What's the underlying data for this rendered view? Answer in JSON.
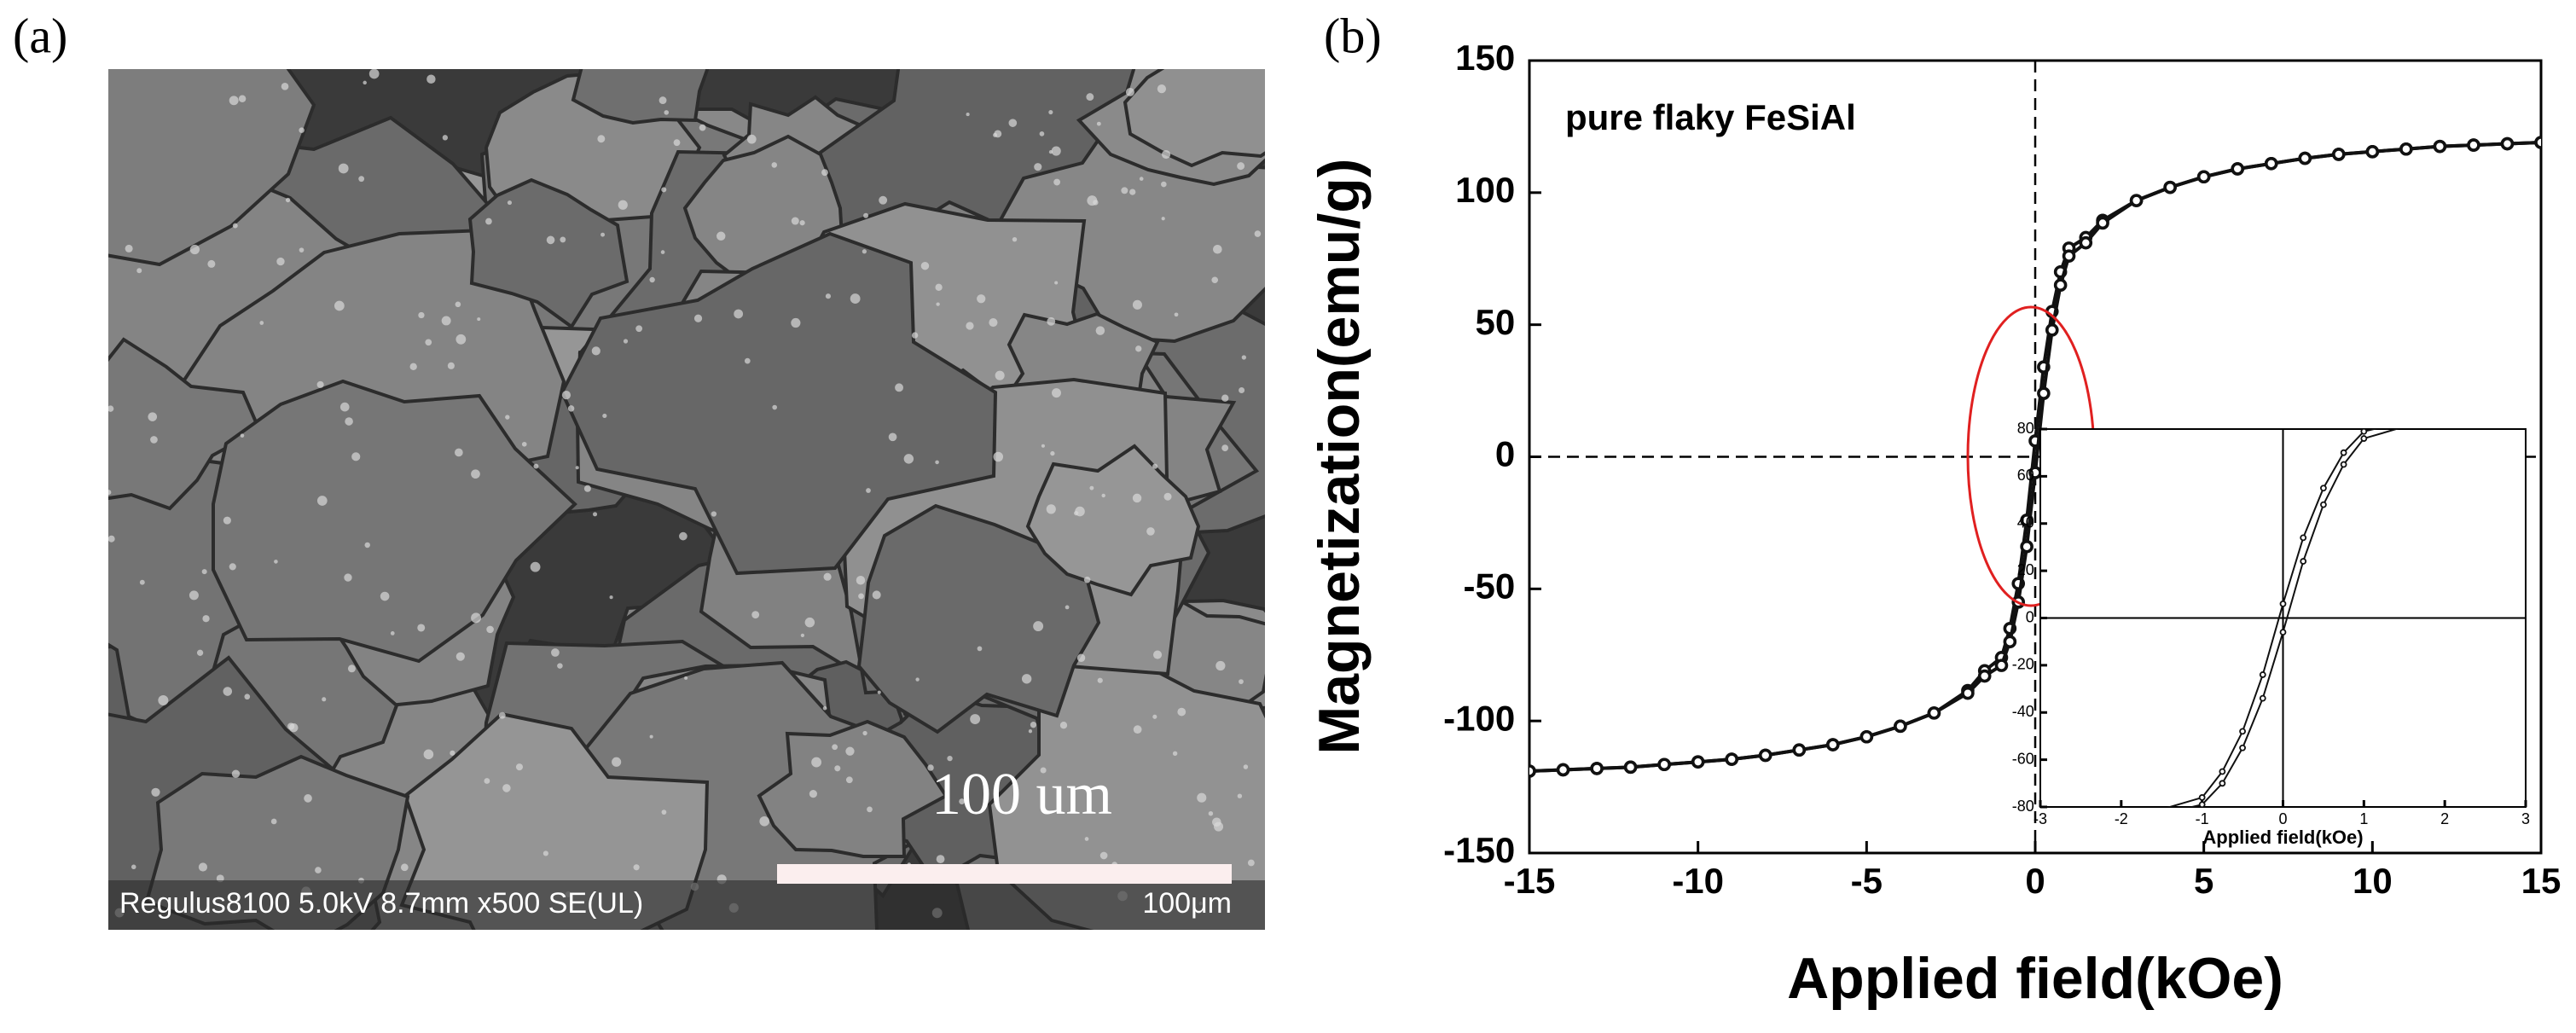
{
  "panel_a": {
    "label": "(a)",
    "scale_text": "100 um",
    "info_bar": "Regulus8100 5.0kV 8.7mm x500 SE(UL)",
    "scale_bar_label": "100μm"
  },
  "chart_data": [
    {
      "type": "line",
      "label": "(b)",
      "annotation": "pure flaky FeSiAl",
      "xlabel": "Applied field(kOe)",
      "ylabel": "Magnetization(emu/g)",
      "xlim": [
        -15,
        15
      ],
      "xticks": [
        -15,
        -10,
        -5,
        0,
        5,
        10,
        15
      ],
      "ylim": [
        -150,
        150
      ],
      "yticks": [
        -150,
        -100,
        -50,
        0,
        50,
        100,
        150
      ],
      "zero_lines": true,
      "x": [
        -15,
        -14,
        -13,
        -12,
        -11,
        -10,
        -9,
        -8,
        -7,
        -6,
        -5,
        -4,
        -3,
        -2,
        -1.5,
        -1,
        -0.75,
        -0.5,
        -0.25,
        0,
        0.25,
        0.5,
        0.75,
        1,
        1.5,
        2,
        3,
        4,
        5,
        6,
        7,
        8,
        9,
        10,
        11,
        12,
        13,
        14,
        15
      ],
      "series": [
        {
          "color": "#111111",
          "values": [
            -119,
            -118.5,
            -118,
            -117.5,
            -116.5,
            -115.5,
            -114.5,
            -113,
            -111,
            -109,
            -106,
            -102,
            -97,
            -88.5,
            -81,
            -76,
            -65,
            -48,
            -24,
            6,
            34,
            55,
            70,
            79,
            83,
            89.5,
            97,
            102,
            106,
            109,
            111,
            113,
            114.5,
            115.5,
            116.5,
            117.5,
            118,
            118.5,
            119
          ]
        },
        {
          "color": "#111111",
          "values": [
            -119,
            -118.5,
            -118,
            -117.5,
            -116.5,
            -115.5,
            -114.5,
            -113,
            -111,
            -109,
            -106,
            -102,
            -97,
            -89.5,
            -83,
            -79,
            -70,
            -55,
            -34,
            -6,
            24,
            48,
            65,
            76,
            81,
            88.5,
            97,
            102,
            106,
            109,
            111,
            113,
            114.5,
            115.5,
            116.5,
            117.5,
            118,
            118.5,
            119
          ]
        }
      ]
    },
    {
      "type": "inset",
      "xlabel": "Applied field(kOe)",
      "xlim": [
        -3,
        3
      ],
      "xticks": [
        -3,
        -2,
        -1,
        0,
        1,
        2,
        3
      ],
      "ylim": [
        -80,
        80
      ],
      "yticks": [
        -80,
        -60,
        -40,
        -20,
        0,
        20,
        40,
        60,
        80
      ]
    }
  ]
}
